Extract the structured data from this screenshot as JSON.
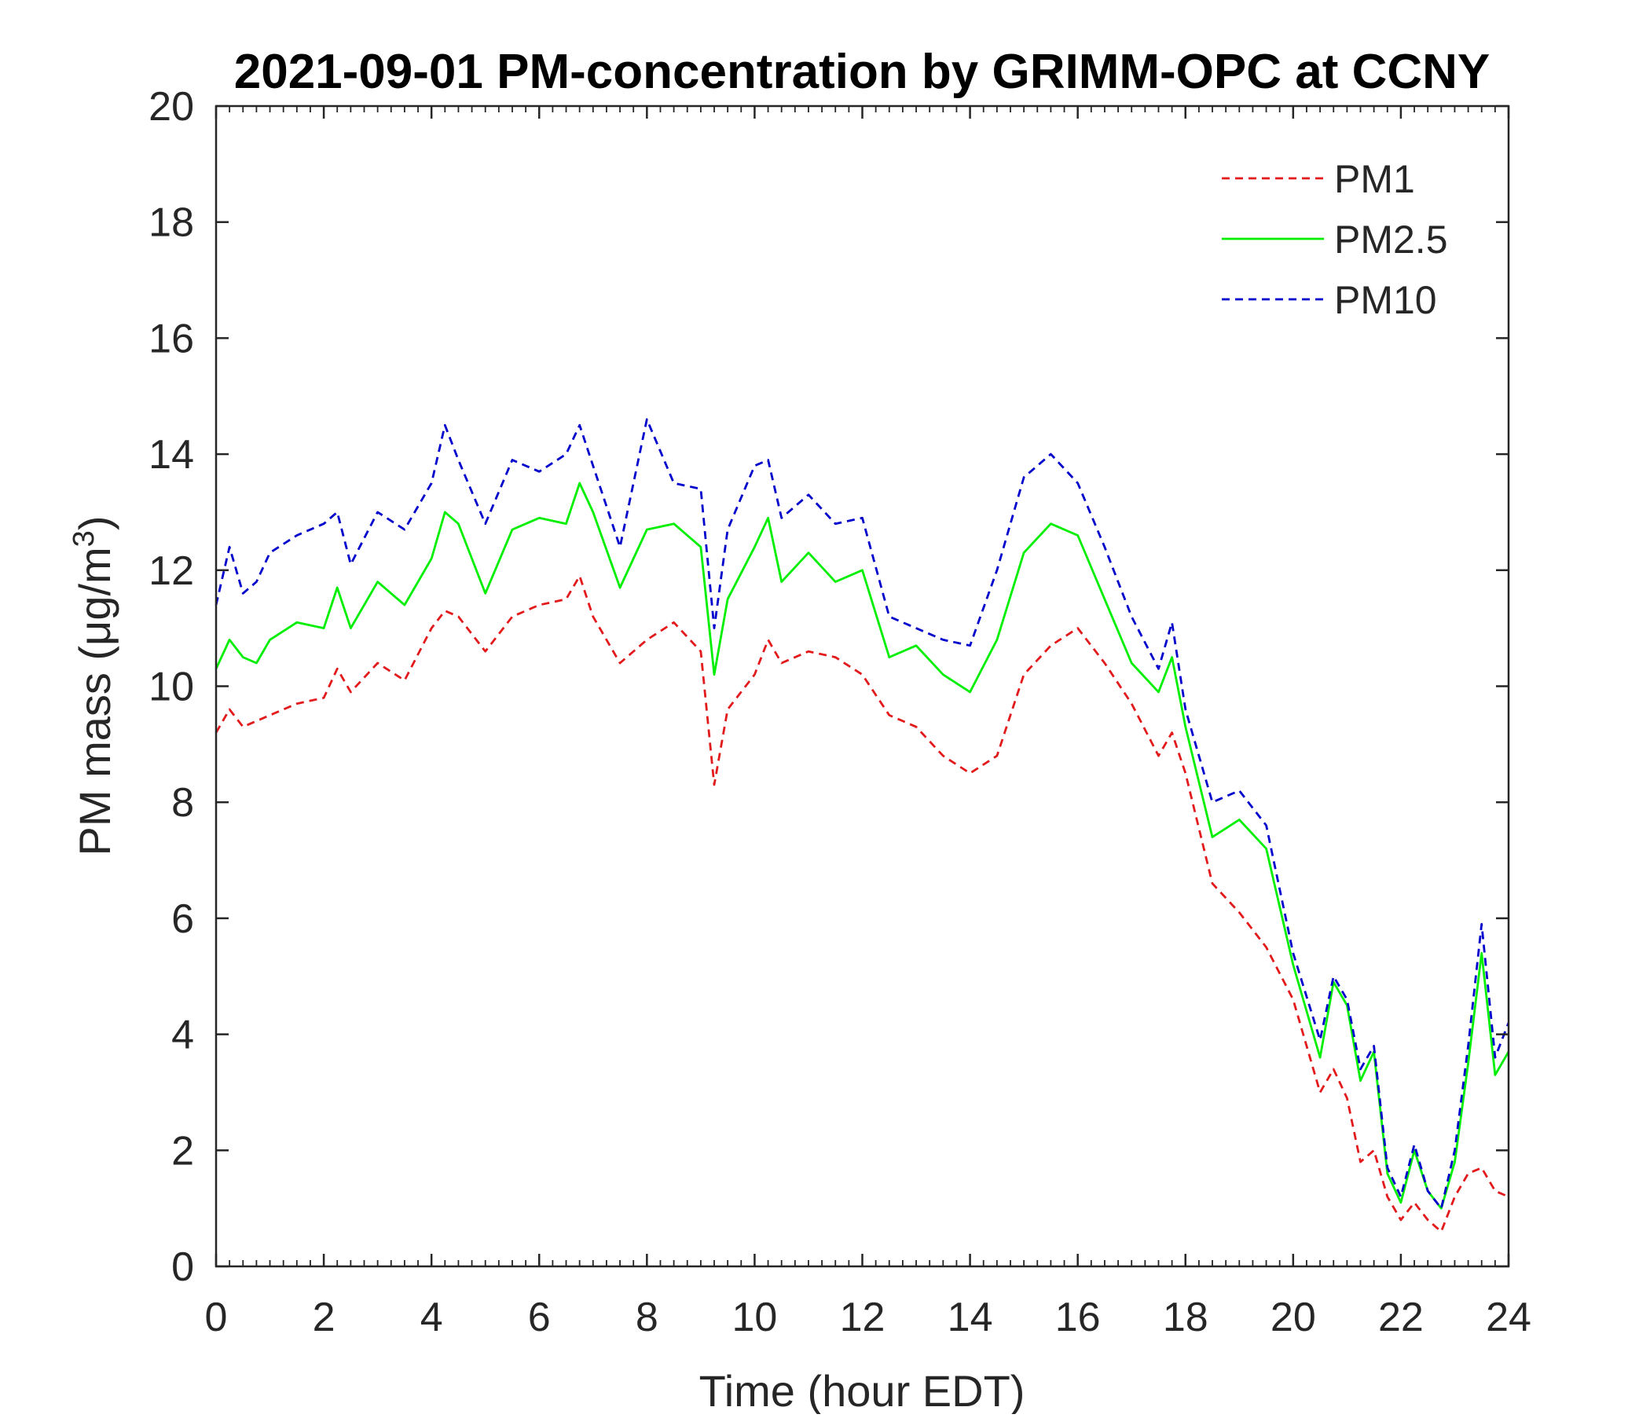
{
  "chart_data": {
    "type": "line",
    "title": "2021-09-01 PM-concentration by GRIMM-OPC at CCNY",
    "xlabel": "Time (hour EDT)",
    "ylabel_prefix": "PM mass (",
    "ylabel_unit": "μg/m",
    "ylabel_sup": "3",
    "ylabel_suffix": ")",
    "xlim": [
      0,
      24
    ],
    "ylim": [
      0,
      20
    ],
    "xticks": [
      "0",
      "2",
      "4",
      "6",
      "8",
      "10",
      "12",
      "14",
      "16",
      "18",
      "20",
      "22",
      "24"
    ],
    "yticks": [
      "0",
      "2",
      "4",
      "6",
      "8",
      "10",
      "12",
      "14",
      "16",
      "18",
      "20"
    ],
    "grid": false,
    "legend_position": "top-right",
    "x": [
      0,
      0.25,
      0.5,
      0.75,
      1,
      1.5,
      2,
      2.25,
      2.5,
      3,
      3.5,
      4,
      4.25,
      4.5,
      5,
      5.5,
      6,
      6.5,
      6.75,
      7,
      7.5,
      8,
      8.5,
      9,
      9.25,
      9.5,
      10,
      10.25,
      10.5,
      11,
      11.5,
      12,
      12.5,
      13,
      13.5,
      14,
      14.5,
      15,
      15.5,
      16,
      16.5,
      17,
      17.5,
      17.75,
      18,
      18.5,
      19,
      19.5,
      20,
      20.5,
      20.75,
      21,
      21.25,
      21.5,
      21.75,
      22,
      22.25,
      22.5,
      22.75,
      23,
      23.25,
      23.5,
      23.75,
      24
    ],
    "series": [
      {
        "name": "PM1",
        "color": "#e31a1c",
        "dash": "dashed",
        "values": [
          9.2,
          9.6,
          9.3,
          9.4,
          9.5,
          9.7,
          9.8,
          10.3,
          9.9,
          10.4,
          10.1,
          11.0,
          11.3,
          11.2,
          10.6,
          11.2,
          11.4,
          11.5,
          11.9,
          11.2,
          10.4,
          10.8,
          11.1,
          10.6,
          8.3,
          9.6,
          10.2,
          10.8,
          10.4,
          10.6,
          10.5,
          10.2,
          9.5,
          9.3,
          8.8,
          8.5,
          8.8,
          10.2,
          10.7,
          11.0,
          10.4,
          9.7,
          8.8,
          9.2,
          8.5,
          6.6,
          6.1,
          5.5,
          4.6,
          3.0,
          3.4,
          2.9,
          1.8,
          2.0,
          1.2,
          0.8,
          1.1,
          0.8,
          0.6,
          1.2,
          1.6,
          1.7,
          1.3,
          1.2
        ]
      },
      {
        "name": "PM2.5",
        "color": "#00ee00",
        "dash": "solid",
        "values": [
          10.3,
          10.8,
          10.5,
          10.4,
          10.8,
          11.1,
          11.0,
          11.7,
          11.0,
          11.8,
          11.4,
          12.2,
          13.0,
          12.8,
          11.6,
          12.7,
          12.9,
          12.8,
          13.5,
          13.0,
          11.7,
          12.7,
          12.8,
          12.4,
          10.2,
          11.5,
          12.4,
          12.9,
          11.8,
          12.3,
          11.8,
          12.0,
          10.5,
          10.7,
          10.2,
          9.9,
          10.8,
          12.3,
          12.8,
          12.6,
          11.5,
          10.4,
          9.9,
          10.5,
          9.3,
          7.4,
          7.7,
          7.2,
          5.2,
          3.6,
          4.9,
          4.5,
          3.2,
          3.7,
          1.6,
          1.1,
          2.0,
          1.3,
          1.0,
          1.8,
          3.5,
          5.4,
          3.3,
          3.7
        ]
      },
      {
        "name": "PM10",
        "color": "#0000cc",
        "dash": "dashed",
        "values": [
          11.4,
          12.4,
          11.6,
          11.8,
          12.3,
          12.6,
          12.8,
          13.0,
          12.1,
          13.0,
          12.7,
          13.5,
          14.5,
          13.9,
          12.8,
          13.9,
          13.7,
          14.0,
          14.5,
          13.8,
          12.4,
          14.6,
          13.5,
          13.4,
          11.0,
          12.7,
          13.8,
          13.9,
          12.9,
          13.3,
          12.8,
          12.9,
          11.2,
          11.0,
          10.8,
          10.7,
          12.0,
          13.6,
          14.0,
          13.5,
          12.4,
          11.2,
          10.3,
          11.1,
          9.6,
          8.0,
          8.2,
          7.6,
          5.4,
          3.9,
          5.0,
          4.6,
          3.4,
          3.8,
          1.7,
          1.2,
          2.1,
          1.3,
          1.0,
          2.0,
          3.8,
          5.9,
          3.6,
          4.2
        ]
      }
    ]
  }
}
